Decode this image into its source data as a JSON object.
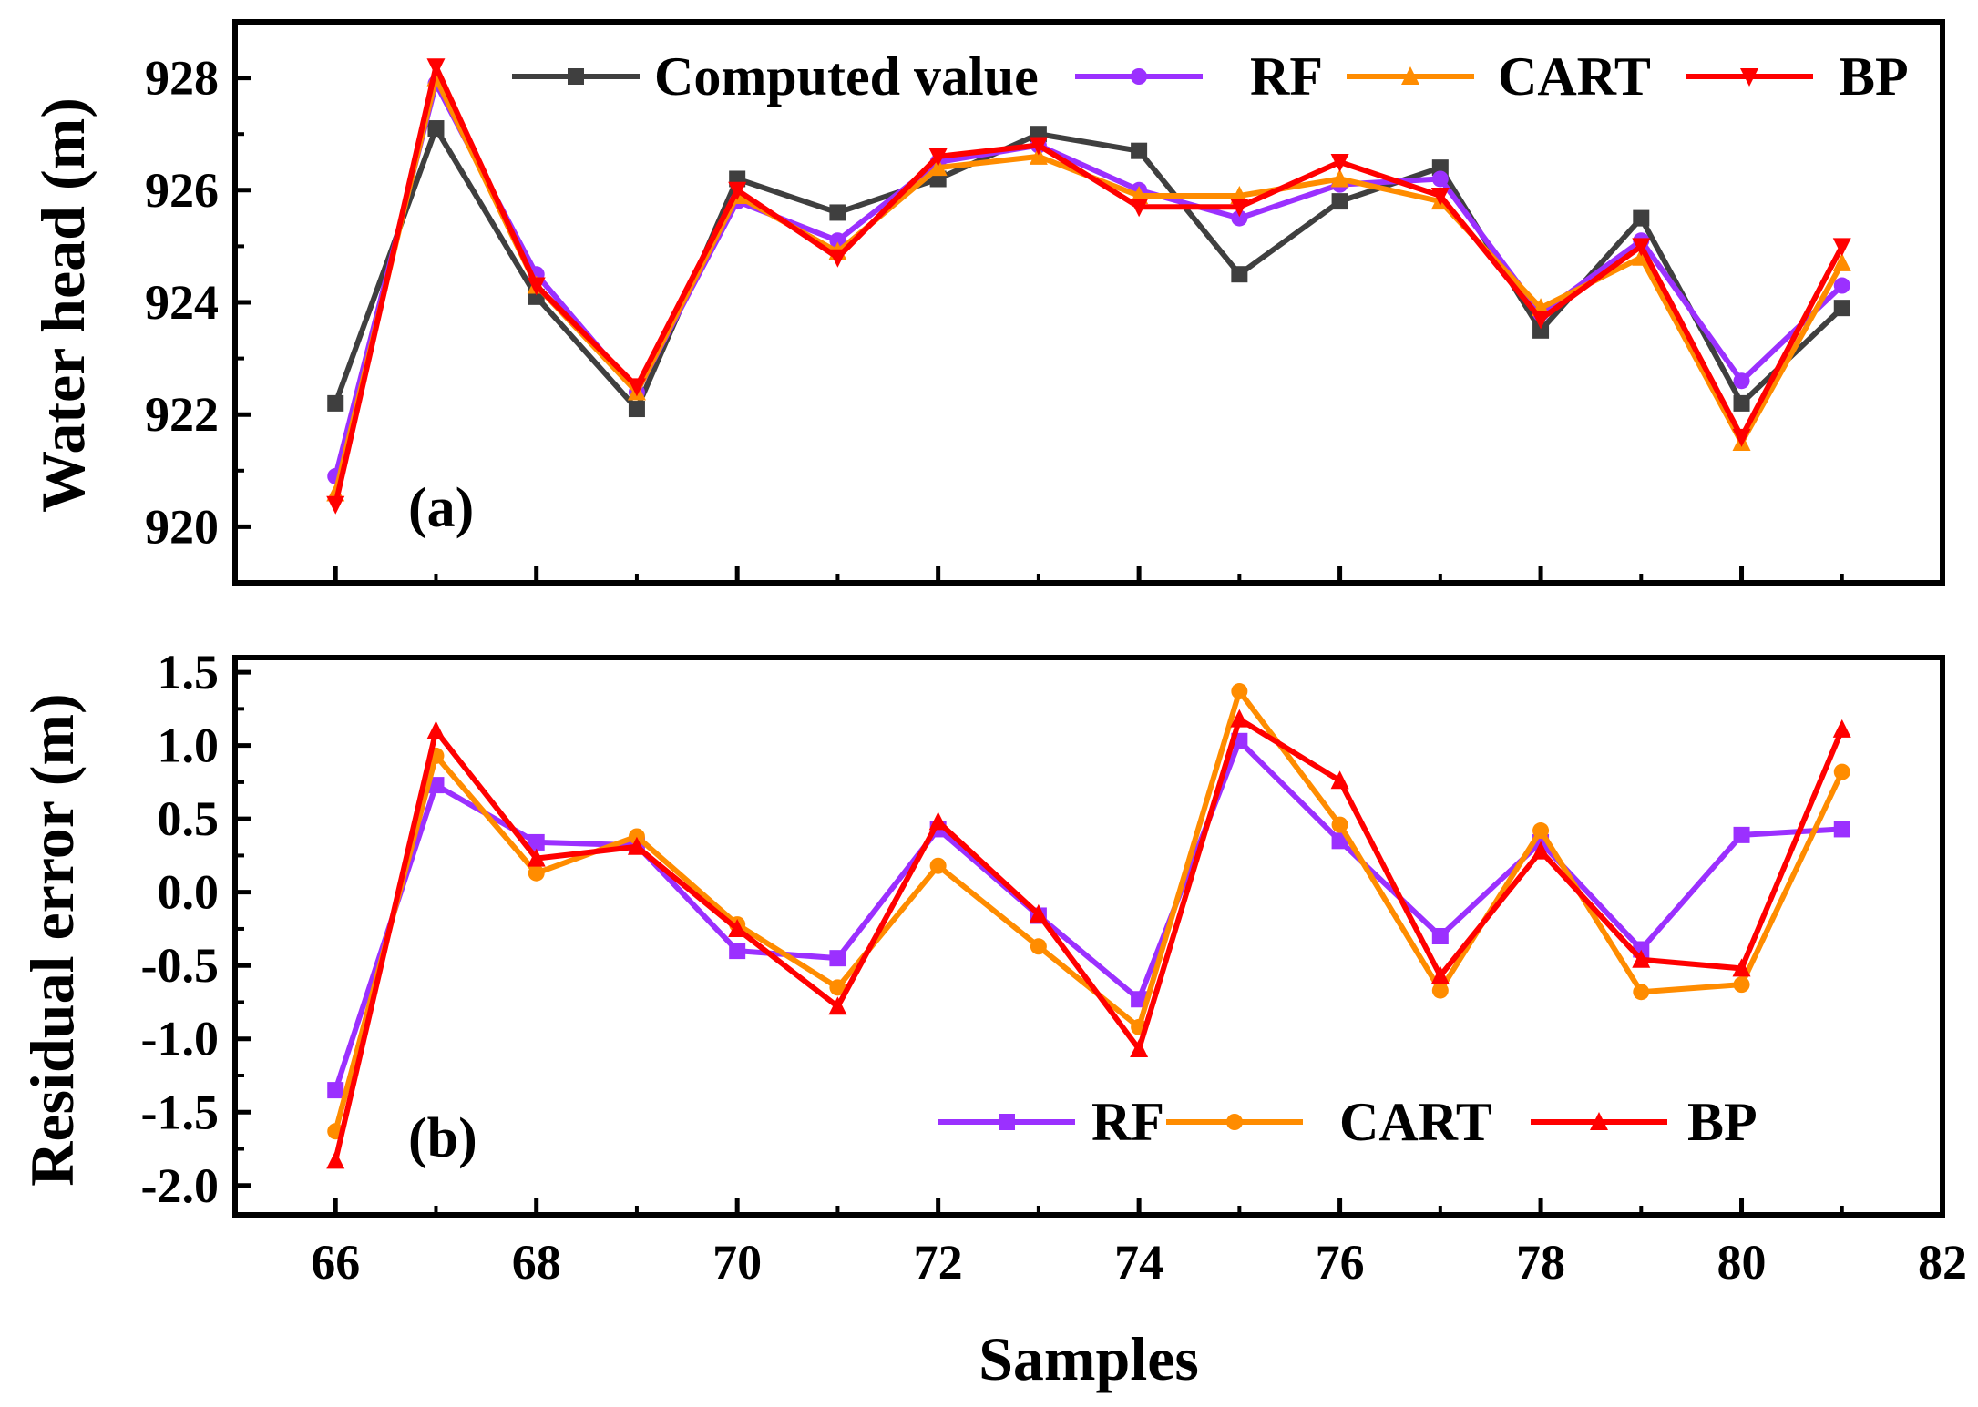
{
  "chart_data": [
    {
      "type": "line",
      "panel_label": "(a)",
      "ylabel": "Water head (m)",
      "xlabel": "",
      "xlim": [
        65,
        82
      ],
      "ylim": [
        919,
        929
      ],
      "yticks": [
        920,
        922,
        924,
        926,
        928
      ],
      "legend_position": "top",
      "x": [
        66,
        67,
        68,
        69,
        70,
        71,
        72,
        73,
        74,
        75,
        76,
        77,
        78,
        79,
        80,
        81
      ],
      "series": [
        {
          "name": "Computed value",
          "color": "#3f3f3f",
          "marker": "square",
          "values": [
            922.2,
            927.1,
            924.1,
            922.1,
            926.2,
            925.6,
            926.2,
            927.0,
            926.7,
            924.5,
            925.8,
            926.4,
            923.5,
            925.5,
            922.2,
            923.9
          ]
        },
        {
          "name": "RF",
          "color": "#9b30ff",
          "marker": "circle",
          "values": [
            920.9,
            927.9,
            924.5,
            922.4,
            925.8,
            925.1,
            926.5,
            926.8,
            926.0,
            925.5,
            926.1,
            926.2,
            923.8,
            925.1,
            922.6,
            924.3
          ]
        },
        {
          "name": "CART",
          "color": "#ff8c00",
          "marker": "triangle-up",
          "values": [
            920.6,
            928.0,
            924.3,
            922.4,
            925.9,
            924.9,
            926.4,
            926.6,
            925.9,
            925.9,
            926.2,
            925.8,
            923.9,
            924.8,
            921.5,
            924.7
          ]
        },
        {
          "name": "BP",
          "color": "#ff0000",
          "marker": "triangle-down",
          "values": [
            920.4,
            928.2,
            924.3,
            922.5,
            926.0,
            924.8,
            926.6,
            926.8,
            925.7,
            925.7,
            926.5,
            925.9,
            923.7,
            925.0,
            921.6,
            925.0
          ]
        }
      ]
    },
    {
      "type": "line",
      "panel_label": "(b)",
      "ylabel": "Residual error (m)",
      "xlabel": "Samples",
      "xlim": [
        65,
        82
      ],
      "ylim": [
        -2.2,
        1.6
      ],
      "yticks": [
        "-2.0",
        "-1.5",
        "-1.0",
        "-0.5",
        "0.0",
        "0.5",
        "1.0",
        "1.5"
      ],
      "xticks": [
        66,
        68,
        70,
        72,
        74,
        76,
        78,
        80,
        82
      ],
      "legend_position": "bottom-right",
      "x": [
        66,
        67,
        68,
        69,
        70,
        71,
        72,
        73,
        74,
        75,
        76,
        77,
        78,
        79,
        80,
        81
      ],
      "series": [
        {
          "name": "RF",
          "color": "#9b30ff",
          "marker": "square",
          "values": [
            -1.35,
            0.73,
            0.34,
            0.32,
            -0.4,
            -0.45,
            0.43,
            -0.16,
            -0.73,
            1.03,
            0.35,
            -0.3,
            0.34,
            -0.39,
            0.39,
            0.43
          ]
        },
        {
          "name": "CART",
          "color": "#ff8c00",
          "marker": "circle",
          "values": [
            -1.63,
            0.93,
            0.13,
            0.38,
            -0.22,
            -0.65,
            0.18,
            -0.37,
            -0.92,
            1.37,
            0.46,
            -0.67,
            0.42,
            -0.68,
            -0.63,
            0.82
          ]
        },
        {
          "name": "BP",
          "color": "#ff0000",
          "marker": "triangle-up",
          "values": [
            -1.83,
            1.1,
            0.23,
            0.31,
            -0.25,
            -0.78,
            0.48,
            -0.15,
            -1.07,
            1.18,
            0.76,
            -0.57,
            0.28,
            -0.46,
            -0.52,
            1.11
          ]
        }
      ]
    }
  ]
}
